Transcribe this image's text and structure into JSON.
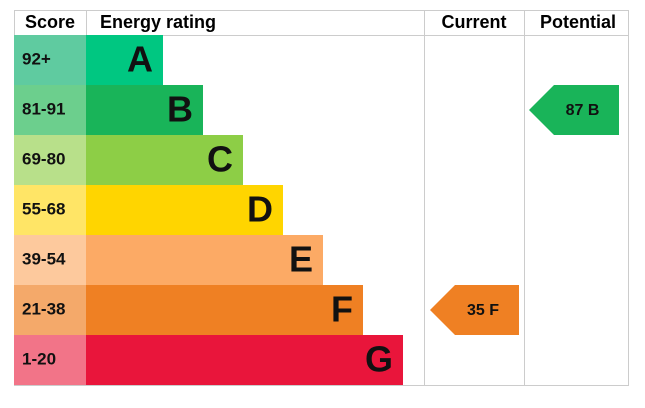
{
  "header": {
    "score": "Score",
    "rating": "Energy rating",
    "current": "Current",
    "potential": "Potential"
  },
  "rows": [
    {
      "score": "92+",
      "letter": "A"
    },
    {
      "score": "81-91",
      "letter": "B"
    },
    {
      "score": "69-80",
      "letter": "C"
    },
    {
      "score": "55-68",
      "letter": "D"
    },
    {
      "score": "39-54",
      "letter": "E"
    },
    {
      "score": "21-38",
      "letter": "F"
    },
    {
      "score": "1-20",
      "letter": "G"
    }
  ],
  "current": "35 F",
  "potential": "87 B"
}
